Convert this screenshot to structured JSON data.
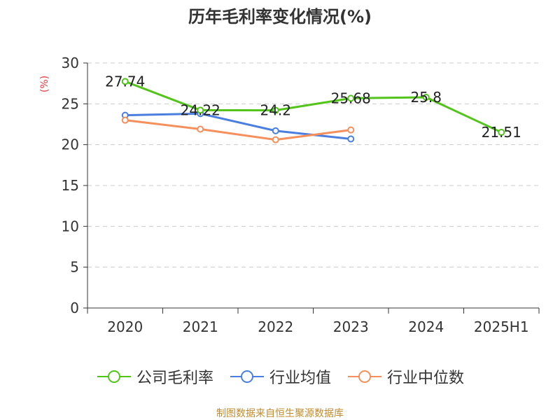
{
  "chart_data": {
    "type": "line",
    "title": "历年毛利率变化情况(%)",
    "ylabel": "(%)",
    "categories": [
      "2020",
      "2021",
      "2022",
      "2023",
      "2024",
      "2025H1"
    ],
    "ylim": [
      0,
      30
    ],
    "yticks": [
      0,
      5,
      10,
      15,
      20,
      25,
      30
    ],
    "grid": "horizontal-dashed",
    "legend_position": "bottom",
    "series": [
      {
        "name": "公司毛利率",
        "color": "#52c41a",
        "values": [
          27.74,
          24.22,
          24.2,
          25.68,
          25.8,
          21.51
        ],
        "labels": [
          "27.74",
          "24.22",
          "24.2",
          "25.68",
          "25.8",
          "21.51"
        ]
      },
      {
        "name": "行业均值",
        "color": "#4a7fe0",
        "values": [
          23.6,
          23.8,
          21.7,
          20.7,
          null,
          null
        ]
      },
      {
        "name": "行业中位数",
        "color": "#f5905c",
        "values": [
          23.0,
          21.9,
          20.6,
          21.8,
          null,
          null
        ]
      }
    ]
  },
  "footer": "制图数据来自恒生聚源数据库"
}
